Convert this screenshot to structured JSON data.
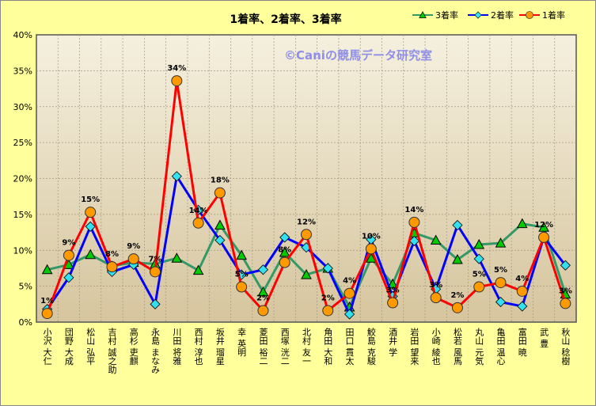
{
  "chart_data": {
    "type": "line",
    "title": "1着率、2着率、3着率",
    "watermark": "©Caniの競馬データ研究室",
    "ylim": [
      0,
      40
    ],
    "yticks": [
      "0%",
      "5%",
      "10%",
      "15%",
      "20%",
      "25%",
      "30%",
      "35%",
      "40%"
    ],
    "legend_position": "top-right",
    "categories": [
      "小沢 大仁",
      "団野 大成",
      "松山 弘平",
      "吉村 誠之助",
      "高杉 吏麒",
      "永島 まなみ",
      "川田 将雅",
      "西村 淳也",
      "坂井 瑠星",
      "幸 英明",
      "菱田 裕二",
      "西塚 洸二",
      "北村 友一",
      "角田 大和",
      "田口 貫太",
      "鮫島 克駿",
      "酒井 学",
      "岩田 望来",
      "小崎 綾也",
      "松若 風馬",
      "丸山 元気",
      "亀田 温心",
      "富田 暁",
      "武 豊",
      "秋山 稔樹"
    ],
    "series": [
      {
        "name": "3着率",
        "color": "#339966",
        "marker": "triangle",
        "values": [
          7.3,
          8.0,
          9.4,
          7.8,
          8.3,
          8.1,
          8.9,
          7.2,
          13.5,
          9.3,
          4.2,
          9.7,
          6.6,
          7.5,
          2.1,
          8.9,
          5.3,
          12.4,
          11.4,
          8.7,
          10.8,
          11.0,
          13.7,
          13.2,
          3.9
        ]
      },
      {
        "name": "2着率",
        "color": "#0000ff",
        "marker": "diamond",
        "values": [
          1.8,
          6.2,
          13.3,
          7.0,
          8.0,
          2.5,
          20.3,
          15.6,
          11.4,
          6.6,
          7.3,
          11.8,
          10.4,
          7.5,
          1.1,
          11.5,
          3.6,
          11.3,
          4.6,
          13.5,
          8.8,
          2.8,
          2.2,
          11.8,
          7.9
        ]
      },
      {
        "name": "1着率",
        "color": "#ff0000",
        "marker": "circle",
        "values": [
          1.2,
          9.3,
          15.3,
          7.7,
          8.8,
          7.0,
          33.6,
          13.8,
          18.0,
          4.9,
          1.6,
          8.3,
          12.2,
          1.6,
          4.0,
          10.2,
          2.7,
          13.9,
          3.4,
          2.0,
          4.9,
          5.5,
          4.3,
          11.8,
          2.6
        ],
        "data_labels": [
          "1%",
          "9%",
          "15%",
          "8%",
          "9%",
          "7%",
          "34%",
          "14%",
          "18%",
          "5%",
          "2%",
          "8%",
          "12%",
          "2%",
          "4%",
          "10%",
          "3%",
          "14%",
          "3%",
          "2%",
          "5%",
          "5%",
          "4%",
          "12%",
          "3%"
        ]
      }
    ]
  }
}
